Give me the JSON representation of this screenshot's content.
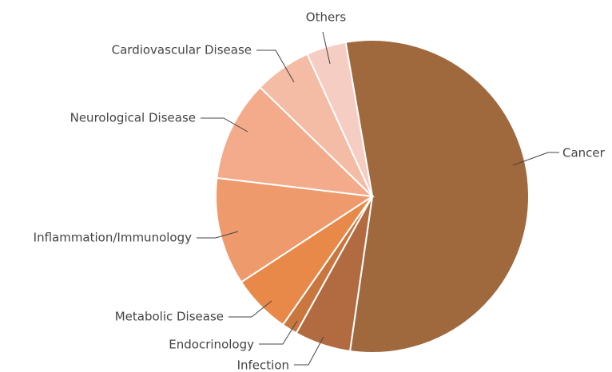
{
  "chart_data": {
    "type": "pie",
    "categories": [
      "Cancer",
      "Infection",
      "Endocrinology",
      "Metabolic Disease",
      "Inflammation/Immunology",
      "Neurological Disease",
      "Cardiovascular Disease",
      "Others"
    ],
    "values": [
      55,
      5.8,
      1.6,
      6.1,
      11.1,
      10.4,
      5.9,
      4.1
    ],
    "colors": [
      "#a0693d",
      "#b26b40",
      "#c9763f",
      "#e8894a",
      "#ef9a6c",
      "#f3ab8b",
      "#f4bba5",
      "#f6cdc3"
    ]
  }
}
